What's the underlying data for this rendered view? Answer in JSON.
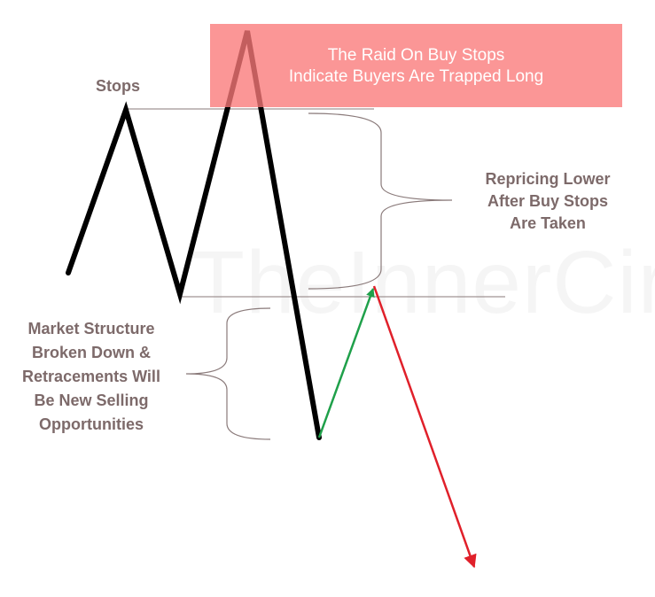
{
  "banner": {
    "line1": "The Raid On Buy Stops",
    "line2": "Indicate Buyers Are Trapped Long"
  },
  "labels": {
    "stops": "Stops",
    "repricing": [
      "Repricing Lower",
      "After Buy Stops",
      "Are Taken"
    ],
    "structure": [
      "Market Structure",
      "Broken Down &",
      "Retracements Will",
      "Be New Selling",
      "Opportunities"
    ]
  },
  "watermark": "TheInnerCir",
  "colors": {
    "price_path": "#000000",
    "retracement_arrow": "#1fa04a",
    "selling_arrow": "#e0202a",
    "label_text": "#7d6a6a",
    "guide_lines": "#8a7a7a",
    "banner_fill": "#fa7878"
  }
}
